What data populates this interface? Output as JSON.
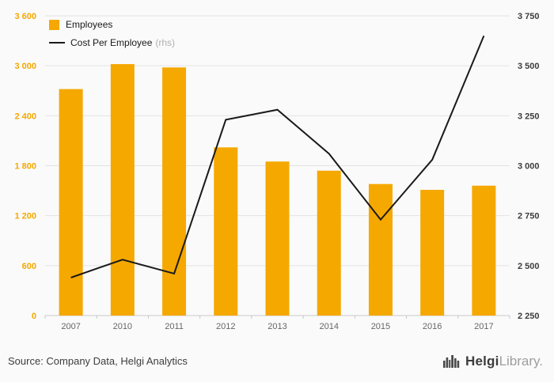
{
  "chart_data": {
    "type": "bar",
    "title": "",
    "categories": [
      "2007",
      "2010",
      "2011",
      "2012",
      "2013",
      "2014",
      "2015",
      "2016",
      "2017"
    ],
    "series": [
      {
        "name": "Employees",
        "type": "bar",
        "axis": "left",
        "color": "#f5a800",
        "values": [
          2720,
          3020,
          2980,
          2020,
          1850,
          1740,
          1580,
          1510,
          1560
        ]
      },
      {
        "name": "Cost Per Employee",
        "type": "line",
        "axis": "right",
        "color": "#1a1a1a",
        "values": [
          2440,
          2530,
          2460,
          3230,
          3280,
          3060,
          2730,
          3030,
          3650
        ]
      }
    ],
    "left_axis": {
      "min": 0,
      "max": 3600,
      "ticks": [
        0,
        600,
        1200,
        1800,
        2400,
        3000,
        3600
      ],
      "tick_labels": [
        "0",
        "600",
        "1 200",
        "1 800",
        "2 400",
        "3 000",
        "3 600"
      ],
      "color": "#f5a800"
    },
    "right_axis": {
      "min": 2250,
      "max": 3750,
      "ticks": [
        2250,
        2500,
        2750,
        3000,
        3250,
        3500,
        3750
      ],
      "tick_labels": [
        "2 250",
        "2 500",
        "2 750",
        "3 000",
        "3 250",
        "3 500",
        "3 750"
      ],
      "color": "#3d3d3d"
    },
    "legend_position": "top-left",
    "grid": true,
    "legend": [
      {
        "label": "Employees",
        "suffix": "",
        "swatch": "square",
        "color": "#f5a800"
      },
      {
        "label": "Cost Per Employee",
        "suffix": "(rhs)",
        "swatch": "line",
        "color": "#1a1a1a"
      }
    ]
  },
  "footer": {
    "source": "Source: Company Data, Helgi Analytics",
    "logo": {
      "text_primary": "Helgi",
      "text_secondary": "Library",
      "text_suffix": "."
    }
  }
}
